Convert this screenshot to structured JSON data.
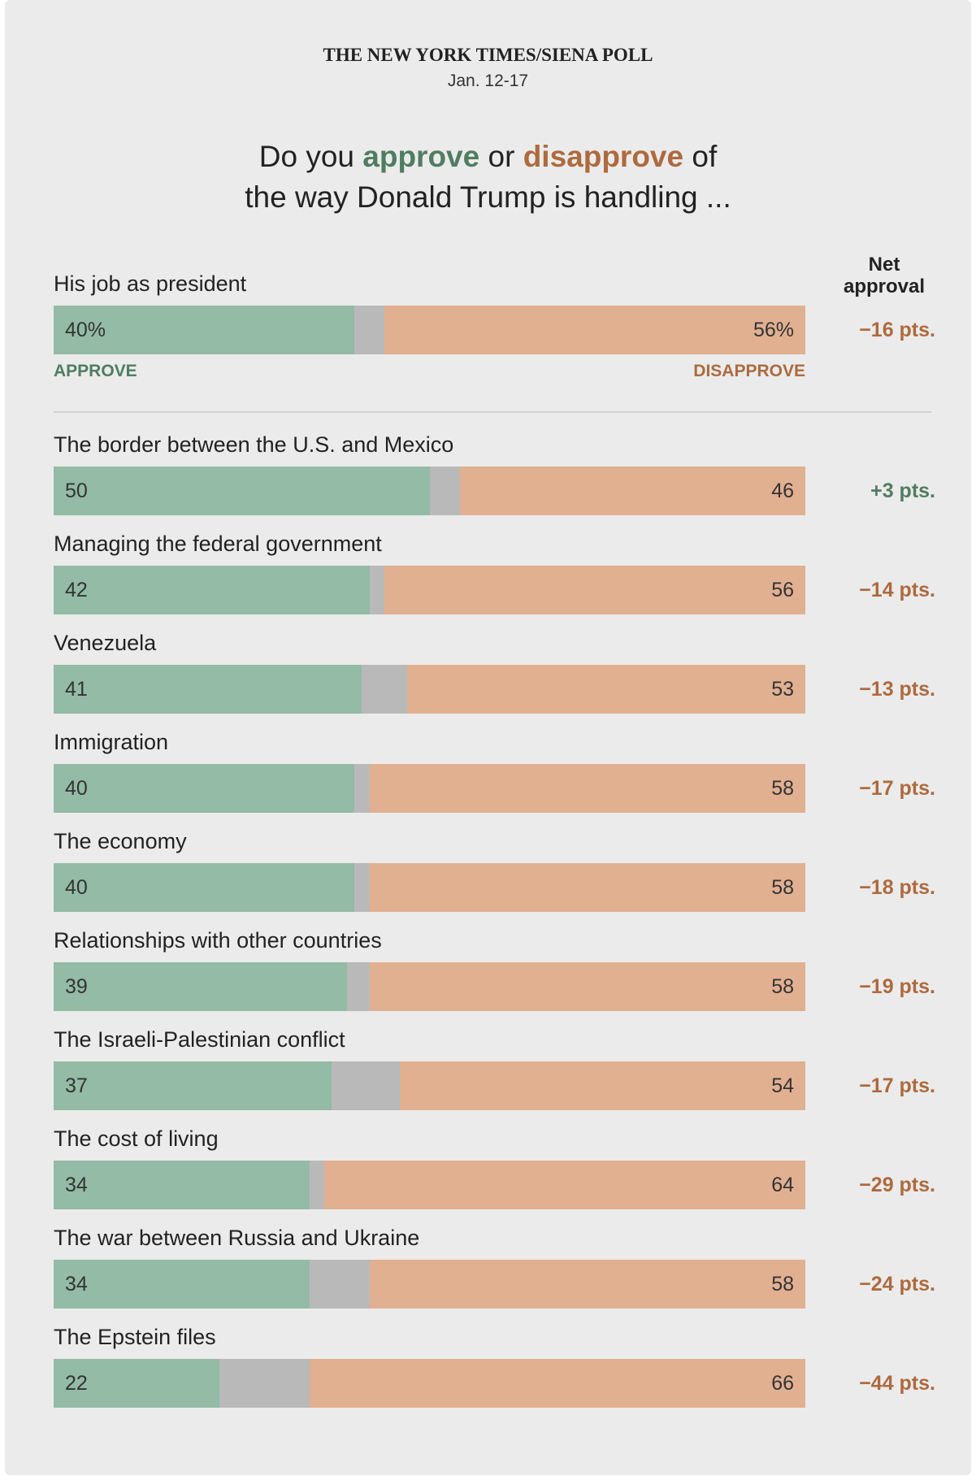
{
  "chart_data": {
    "type": "bar",
    "title": "THE NEW YORK TIMES/SIENA POLL",
    "subtitle": "Jan. 12-17",
    "question": {
      "line1": [
        "Do you",
        "approve",
        "or",
        "disapprove",
        "of"
      ],
      "line2": "the way Donald Trump is handling ..."
    },
    "categories": [
      "His job as president",
      "The border between the U.S. and Mexico",
      "Managing the federal government",
      "Venezuela",
      "Immigration",
      "The economy",
      "Relationships with other countries",
      "The Israeli-Palestinian conflict",
      "The cost of living",
      "The war between Russia and Ukraine",
      "The Epstein files"
    ],
    "xlim": [
      0,
      100
    ],
    "track_color": "#b9b9b9",
    "series": [
      {
        "name": "APPROVE",
        "color": "#93bba5",
        "text_color": "#4f7d62",
        "values": [
          40,
          50,
          42,
          41,
          40,
          40,
          39,
          37,
          34,
          34,
          22
        ],
        "value_labels": [
          "40%",
          "50",
          "42",
          "41",
          "40",
          "40",
          "39",
          "37",
          "34",
          "34",
          "22"
        ]
      },
      {
        "name": "DISAPPROVE",
        "color": "#e1b091",
        "text_color": "#ae6a3e",
        "values": [
          56,
          46,
          56,
          53,
          58,
          58,
          58,
          54,
          64,
          58,
          66
        ],
        "value_labels": [
          "56%",
          "46",
          "56",
          "53",
          "58",
          "58",
          "58",
          "54",
          "64",
          "58",
          "66"
        ]
      }
    ],
    "net": {
      "name": "Net approval",
      "values": [
        -16,
        3,
        -14,
        -13,
        -17,
        -18,
        -19,
        -17,
        -29,
        -24,
        -44
      ],
      "value_labels": [
        "−16 pts.",
        "+3 pts.",
        "−14 pts.",
        "−13 pts.",
        "−17 pts.",
        "−18 pts.",
        "−19 pts.",
        "−17 pts.",
        "−29 pts.",
        "−24 pts.",
        "−44 pts."
      ]
    }
  }
}
